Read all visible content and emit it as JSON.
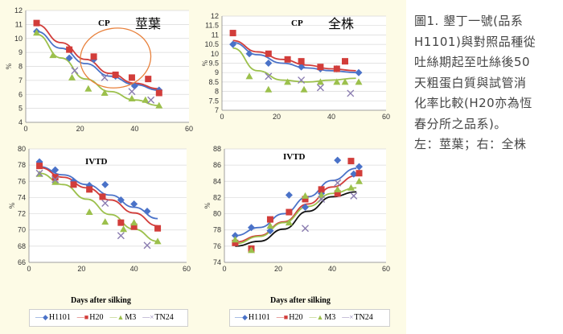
{
  "caption": {
    "lines": [
      "圖1. 墾丁一號(品系",
      "H1101)與對照品種從",
      "吐絲期起至吐絲後50",
      "天粗蛋白質與試管消",
      "化率比較(H20亦為恆",
      "春分所之品系)。",
      "左：莖葉；右：全株"
    ]
  },
  "xlabel_text": "Days after silking",
  "colors": {
    "H1101": "#4a72c8",
    "H20": "#d23d3a",
    "M3": "#9cc04c",
    "TN24": "#8a7cb0",
    "ellipse": "#e8813c"
  },
  "legend": [
    {
      "name": "H1101",
      "marker": "◆",
      "color": "#4a72c8"
    },
    {
      "name": "H20",
      "marker": "■",
      "color": "#d23d3a"
    },
    {
      "name": "M3",
      "marker": "▲",
      "color": "#9cc04c"
    },
    {
      "name": "TN24",
      "marker": "×",
      "color": "#8a7cb0"
    }
  ],
  "chart_data": [
    {
      "id": "cp-stem",
      "type": "scatter",
      "title": "CP",
      "title2": "莖葉",
      "ylabel": "%",
      "xlim": [
        0,
        60
      ],
      "ylim": [
        4,
        12
      ],
      "xticks": [
        0,
        20,
        40,
        60
      ],
      "yticks": [
        4,
        5,
        6,
        7,
        8,
        9,
        10,
        11,
        12
      ],
      "series": [
        {
          "name": "H1101",
          "x": [
            4,
            16,
            25,
            33,
            40,
            49
          ],
          "y": [
            10.5,
            8.6,
            8.5,
            7.3,
            6.6,
            6.3
          ],
          "fit": [
            10.5,
            9.3,
            8.2,
            7.3,
            6.7,
            6.3
          ]
        },
        {
          "name": "H20",
          "x": [
            4,
            16,
            25,
            33,
            39,
            45,
            49
          ],
          "y": [
            11.1,
            9.2,
            8.7,
            7.4,
            7.2,
            7.1,
            6.1
          ],
          "fit": [
            11.0,
            9.7,
            8.5,
            7.5,
            6.8,
            6.4
          ]
        },
        {
          "name": "M3",
          "x": [
            4,
            10,
            17,
            23,
            29,
            39,
            44,
            49
          ],
          "y": [
            10.4,
            8.8,
            7.2,
            6.4,
            6.1,
            5.7,
            5.6,
            5.2
          ],
          "fit": [
            10.3,
            8.6,
            7.1,
            6.2,
            5.6,
            5.2
          ]
        },
        {
          "name": "TN24",
          "x": [
            18,
            29,
            39,
            46
          ],
          "y": [
            7.7,
            7.2,
            6.2,
            5.6
          ],
          "fit": null
        }
      ]
    },
    {
      "id": "cp-whole",
      "type": "scatter",
      "title": "CP",
      "title2": "全株",
      "ylabel": "%",
      "xlim": [
        0,
        60
      ],
      "ylim": [
        7,
        12
      ],
      "xticks": [
        0,
        20,
        40,
        60
      ],
      "yticks": [
        7,
        7.5,
        8,
        8.5,
        9,
        9.5,
        10,
        10.5,
        11,
        11.5,
        12
      ],
      "series": [
        {
          "name": "H1101",
          "x": [
            4,
            10,
            17,
            29,
            36,
            42,
            50
          ],
          "y": [
            10.5,
            10,
            9.5,
            9.3,
            9.2,
            9.2,
            9
          ],
          "fit": [
            10.6,
            9.95,
            9.5,
            9.25,
            9.1,
            9.0
          ]
        },
        {
          "name": "H20",
          "x": [
            4,
            17,
            24,
            29,
            36,
            42,
            45
          ],
          "y": [
            11.1,
            10,
            9.7,
            9.6,
            9.3,
            9.2,
            9.6
          ],
          "fit": [
            10.7,
            10.1,
            9.7,
            9.4,
            9.2,
            9.1
          ]
        },
        {
          "name": "M3",
          "x": [
            10,
            17,
            24,
            30,
            36,
            42,
            45,
            50
          ],
          "y": [
            8.8,
            8.1,
            8.5,
            8.1,
            8.5,
            8.5,
            8.5,
            8.5
          ],
          "fit": [
            10.3,
            9.1,
            8.6,
            8.5,
            8.6,
            8.7
          ]
        },
        {
          "name": "TN24",
          "x": [
            17,
            29,
            36,
            47
          ],
          "y": [
            8.8,
            8.6,
            8.2,
            7.9
          ],
          "fit": null
        }
      ]
    },
    {
      "id": "ivtd-stem",
      "type": "scatter",
      "title": "IVTD",
      "ylabel": "%",
      "xlim": [
        0,
        60
      ],
      "ylim": [
        66,
        80
      ],
      "xticks": [
        0,
        20,
        40,
        60
      ],
      "yticks": [
        66,
        68,
        70,
        72,
        74,
        76,
        78,
        80
      ],
      "series": [
        {
          "name": "H1101",
          "x": [
            4,
            10,
            17,
            23,
            29,
            35,
            40,
            45
          ],
          "y": [
            78.4,
            77.4,
            76,
            75.5,
            75.6,
            73.7,
            73.2,
            72.3
          ],
          "fit": [
            77.8,
            76.8,
            75.6,
            74.3,
            72.8,
            71.4
          ]
        },
        {
          "name": "H20",
          "x": [
            4,
            10,
            17,
            23,
            28,
            35,
            40,
            49
          ],
          "y": [
            77.9,
            76.5,
            75.6,
            75,
            74.1,
            70.9,
            70.4,
            70.2
          ],
          "fit": [
            77.7,
            76.5,
            75.2,
            73.7,
            72.1,
            70.5
          ]
        },
        {
          "name": "M3",
          "x": [
            4,
            10,
            23,
            29,
            36,
            40,
            49
          ],
          "y": [
            76.9,
            75.9,
            72.2,
            71,
            70.1,
            70.9,
            68.6
          ],
          "fit": [
            77.0,
            75.6,
            73.8,
            71.9,
            70.1,
            68.6
          ]
        },
        {
          "name": "TN24",
          "x": [
            4,
            10,
            29,
            35,
            45
          ],
          "y": [
            77,
            76.2,
            73.3,
            69.3,
            68.1
          ],
          "fit": null
        }
      ]
    },
    {
      "id": "ivtd-whole",
      "type": "scatter",
      "title": "IVTD",
      "ylabel": "%",
      "xlim": [
        0,
        60
      ],
      "ylim": [
        74,
        88
      ],
      "xticks": [
        0,
        20,
        40,
        60
      ],
      "yticks": [
        74,
        76,
        78,
        80,
        82,
        84,
        86,
        88
      ],
      "series": [
        {
          "name": "H1101",
          "x": [
            4,
            10,
            17,
            24,
            30,
            36,
            42,
            48,
            50
          ],
          "y": [
            77.3,
            78.3,
            77.9,
            82.3,
            80.8,
            82.5,
            86.6,
            84.9,
            85.8
          ],
          "fit": [
            77.3,
            78.3,
            80.0,
            82.1,
            84.1,
            85.6
          ]
        },
        {
          "name": "H20",
          "x": [
            4,
            10,
            17,
            24,
            30,
            36,
            42,
            47,
            50
          ],
          "y": [
            76.4,
            75.7,
            79.3,
            80.2,
            81.8,
            83,
            82.5,
            86.5,
            85
          ],
          "fit": [
            76.5,
            77.3,
            79.0,
            81.2,
            83.3,
            84.7
          ]
        },
        {
          "name": "M3",
          "x": [
            4,
            10,
            17,
            24,
            30,
            36,
            42,
            47,
            50
          ],
          "y": [
            76.8,
            75.5,
            78.5,
            78.9,
            82.2,
            82.3,
            83,
            83.2,
            84
          ],
          "fit": [
            76.3,
            77.2,
            78.9,
            80.9,
            82.5,
            83.2
          ]
        },
        {
          "name": "TN24",
          "x": [
            30,
            36,
            42,
            48
          ],
          "y": [
            78.2,
            81.8,
            83.8,
            82.2
          ],
          "fit": [
            76.0,
            76.6,
            78.1,
            80.3,
            82.1,
            82.7
          ]
        }
      ]
    }
  ]
}
